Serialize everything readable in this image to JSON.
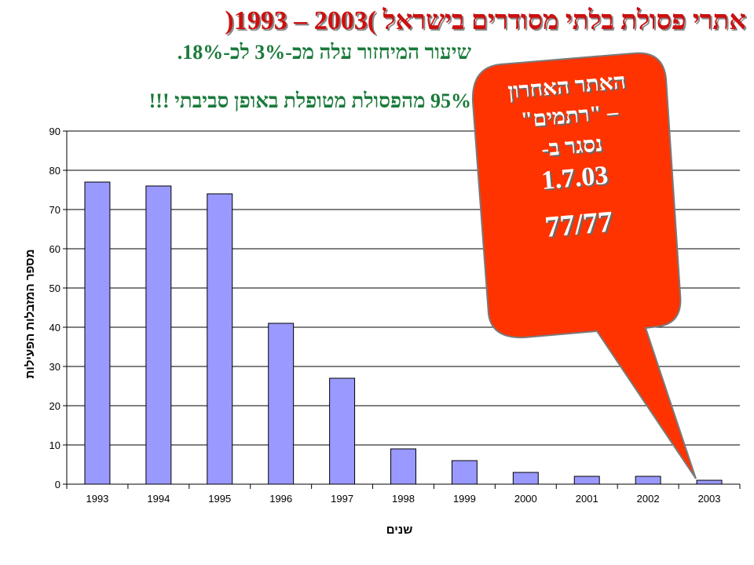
{
  "slide": {
    "title": "אתרי פסולת בלתי מסודרים בישראל )2003 – 1993(",
    "subtitle1": "שיעור המיחזור עלה מכ-3% לכ-18%.",
    "subtitle2": "95% מהפסולת מטופלת באופן סביבתי !!!"
  },
  "callout": {
    "line1": "האתר האחרון",
    "line2": "– \"רתמים\"",
    "line3": "נסגר ב-",
    "line4": "1.7.03",
    "line5": "77/77",
    "fill_color": "#ff3300"
  },
  "chart_data": {
    "type": "bar",
    "categories": [
      "1993",
      "1994",
      "1995",
      "1996",
      "1997",
      "1998",
      "1999",
      "2000",
      "2001",
      "2002",
      "2003"
    ],
    "values": [
      77,
      76,
      74,
      41,
      27,
      9,
      6,
      3,
      2,
      2,
      1
    ],
    "title": "",
    "xlabel": "שנים",
    "ylabel": "מספר המזבלות הפעילות",
    "ylim": [
      0,
      90
    ],
    "yticks": [
      0,
      10,
      20,
      30,
      40,
      50,
      60,
      70,
      80,
      90
    ],
    "grid": true,
    "legend": "none",
    "bar_color": "#9999ff"
  }
}
